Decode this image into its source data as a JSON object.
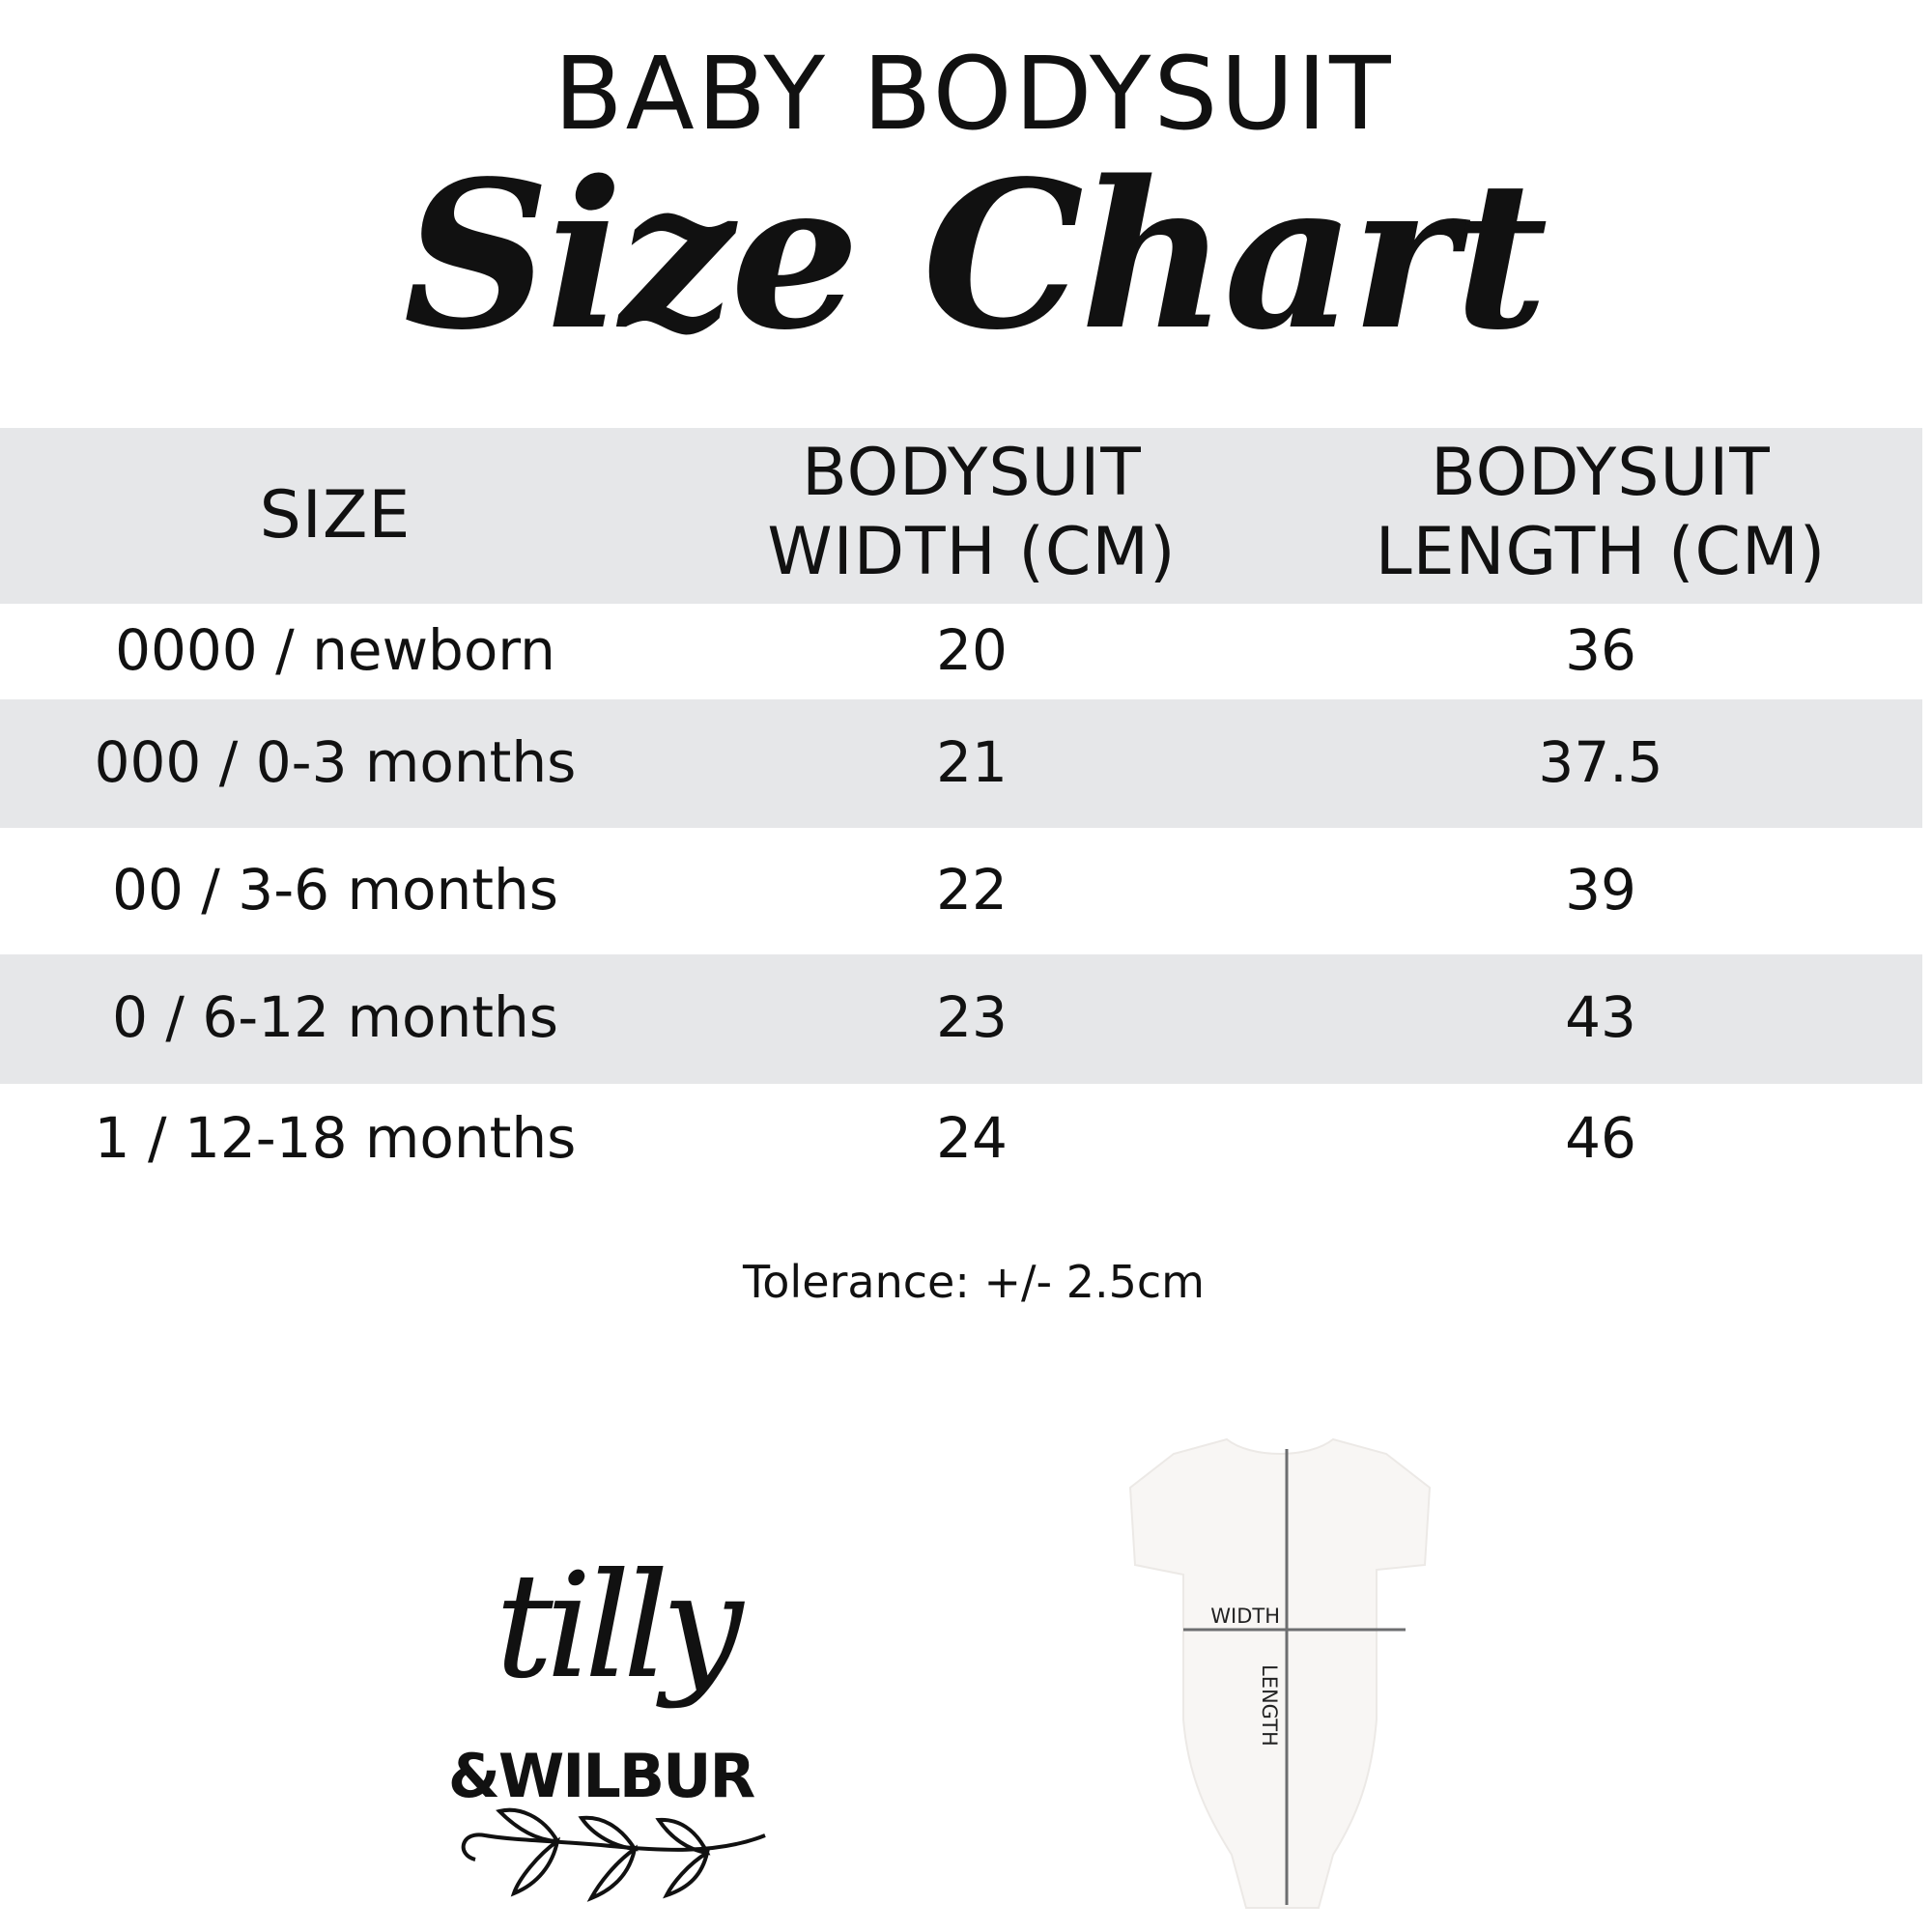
{
  "header": {
    "title": "BABY BODYSUIT",
    "subtitle": "Size Chart"
  },
  "table": {
    "columns": [
      {
        "line1": "SIZE",
        "line2": ""
      },
      {
        "line1": "BODYSUIT",
        "line2": "WIDTH (CM)"
      },
      {
        "line1": "BODYSUIT",
        "line2": "LENGTH (CM)"
      }
    ],
    "rows": [
      {
        "size": "0000 / newborn",
        "width": "20",
        "length": "36"
      },
      {
        "size": "000 / 0-3 months",
        "width": "21",
        "length": "37.5"
      },
      {
        "size": "00 / 3-6 months",
        "width": "22",
        "length": "39"
      },
      {
        "size": "0 / 6-12 months",
        "width": "23",
        "length": "43"
      },
      {
        "size": "1 / 12-18 months",
        "width": "24",
        "length": "46"
      }
    ]
  },
  "tolerance": "Tolerance: +/- 2.5cm",
  "logo": {
    "line1": "tilly",
    "line2": "&WILBUR"
  },
  "diagram": {
    "width_label": "WIDTH",
    "length_label": "LENGTH"
  },
  "colors": {
    "band": "#e6e7e9",
    "text": "#111111",
    "measure_line": "#6d6e70"
  }
}
